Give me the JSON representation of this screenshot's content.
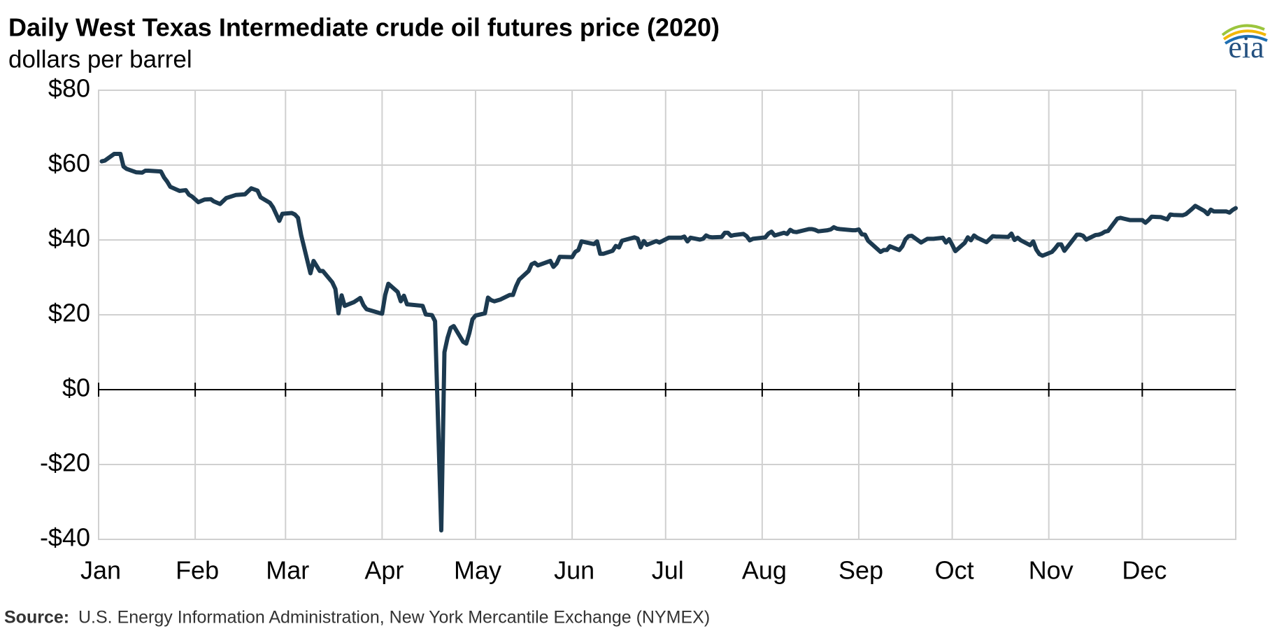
{
  "chart_data": {
    "type": "line",
    "title": "Daily West Texas Intermediate crude oil futures price (2020)",
    "subtitle": "dollars per barrel",
    "source_label": "Source:",
    "source": "U.S. Energy Information Administration, New York Mercantile Exchange (NYMEX)",
    "logo": "eia",
    "color": "#1c3a50",
    "grid": true,
    "xlim": [
      1,
      366
    ],
    "xticks": [
      {
        "value": 1,
        "label": "Jan"
      },
      {
        "value": 32,
        "label": "Feb"
      },
      {
        "value": 61,
        "label": "Mar"
      },
      {
        "value": 92,
        "label": "Apr"
      },
      {
        "value": 122,
        "label": "May"
      },
      {
        "value": 153,
        "label": "Jun"
      },
      {
        "value": 183,
        "label": "Jul"
      },
      {
        "value": 214,
        "label": "Aug"
      },
      {
        "value": 245,
        "label": "Sep"
      },
      {
        "value": 275,
        "label": "Oct"
      },
      {
        "value": 306,
        "label": "Nov"
      },
      {
        "value": 336,
        "label": "Dec"
      }
    ],
    "ylim": [
      -40,
      80
    ],
    "yticks": [
      {
        "value": -40,
        "label": "-$40"
      },
      {
        "value": -20,
        "label": "-$20"
      },
      {
        "value": 0,
        "label": "$0"
      },
      {
        "value": 20,
        "label": "$20"
      },
      {
        "value": 40,
        "label": "$40"
      },
      {
        "value": 60,
        "label": "$60"
      },
      {
        "value": 80,
        "label": "$80"
      }
    ],
    "x": [
      2,
      3,
      6,
      8,
      9,
      10,
      13,
      15,
      16,
      17,
      21,
      22,
      23,
      24,
      27,
      29,
      30,
      31,
      33,
      35,
      37,
      38,
      40,
      42,
      45,
      48,
      50,
      52,
      53,
      56,
      57,
      59,
      60,
      63,
      64,
      65,
      66,
      69,
      70,
      72,
      73,
      76,
      77,
      78,
      79,
      80,
      83,
      85,
      86,
      87,
      91,
      92,
      93,
      94,
      97,
      98,
      99,
      100,
      105,
      106,
      108,
      109,
      111,
      112,
      113,
      114,
      115,
      118,
      119,
      120,
      121,
      122,
      125,
      126,
      127,
      128,
      130,
      133,
      134,
      135,
      136,
      139,
      140,
      141,
      142,
      146,
      147,
      148,
      149,
      153,
      154,
      155,
      156,
      160,
      161,
      162,
      163,
      166,
      167,
      168,
      169,
      173,
      174,
      175,
      176,
      177,
      180,
      181,
      184,
      188,
      189,
      190,
      191,
      194,
      195,
      196,
      197,
      198,
      201,
      202,
      203,
      204,
      205,
      208,
      209,
      210,
      211,
      215,
      216,
      217,
      218,
      221,
      222,
      223,
      224,
      225,
      229,
      230,
      231,
      232,
      235,
      236,
      237,
      238,
      239,
      243,
      244,
      245,
      246,
      247,
      248,
      252,
      253,
      254,
      255,
      258,
      259,
      260,
      261,
      262,
      265,
      266,
      267,
      268,
      269,
      272,
      273,
      274,
      275,
      276,
      279,
      280,
      281,
      282,
      283,
      286,
      287,
      288,
      289,
      290,
      293,
      294,
      295,
      296,
      297,
      300,
      301,
      302,
      303,
      304,
      307,
      308,
      309,
      310,
      311,
      314,
      315,
      316,
      317,
      318,
      321,
      322,
      323,
      324,
      325,
      328,
      329,
      330,
      332,
      335,
      336,
      337,
      338,
      339,
      342,
      343,
      344,
      345,
      346,
      349,
      350,
      351,
      352,
      353,
      356,
      357,
      358,
      359,
      363,
      364,
      365,
      366
    ],
    "values": [
      61,
      61.2,
      63,
      63,
      59.6,
      59,
      58.1,
      58,
      58.5,
      58.5,
      58.3,
      56.7,
      55.6,
      54.2,
      53.1,
      53.3,
      52.1,
      51.6,
      50.1,
      50.8,
      50.9,
      50.3,
      49.6,
      51.2,
      52,
      52.2,
      53.8,
      53.2,
      51.4,
      49.9,
      48.7,
      45.1,
      47,
      47.2,
      46.8,
      45.9,
      41.3,
      31.1,
      34.4,
      31.7,
      31.7,
      28.7,
      26.9,
      20.4,
      25.2,
      22.4,
      23.4,
      24.5,
      22.6,
      21.5,
      20.5,
      20.3,
      25.3,
      28.3,
      26.1,
      23.6,
      25.1,
      22.8,
      22.4,
      20.1,
      19.9,
      18.3,
      -37.6,
      10,
      13.8,
      16.5,
      17,
      12.8,
      12.3,
      15.1,
      18.8,
      19.8,
      20.4,
      24.6,
      23.9,
      23.6,
      24.1,
      25.3,
      25.3,
      27.6,
      29.4,
      31.7,
      33.5,
      33.9,
      33.2,
      34.4,
      32.8,
      33.7,
      35.5,
      35.4,
      36.8,
      37.3,
      39.6,
      38.9,
      39.6,
      36.3,
      36.3,
      37.1,
      38.4,
      38,
      39.8,
      40.7,
      40.4,
      38,
      39.7,
      38.7,
      39.7,
      39.3,
      40.6,
      40.6,
      40.9,
      39.6,
      40.6,
      40.1,
      40.3,
      41.2,
      40.8,
      40.7,
      40.8,
      41.9,
      41.9,
      41.1,
      41.3,
      41.6,
      41,
      39.9,
      40.3,
      40.7,
      41.7,
      42.2,
      41.2,
      41.9,
      41.6,
      42.7,
      42.2,
      42.1,
      42.9,
      42.9,
      42.7,
      42.3,
      42.6,
      42.8,
      43.4,
      43,
      42.9,
      42.6,
      42.6,
      42.8,
      41.5,
      41.4,
      39.8,
      36.8,
      37.3,
      37.3,
      38.3,
      37.3,
      38.3,
      40.2,
      41,
      41.1,
      39.3,
      39.8,
      40.3,
      40.3,
      40.3,
      40.6,
      39.3,
      40.2,
      38.7,
      37,
      39.2,
      40.7,
      39.9,
      41.2,
      40.6,
      39.4,
      40.2,
      41,
      40.9,
      40.9,
      40.8,
      41.7,
      40,
      40.6,
      39.9,
      38.6,
      39.6,
      37.4,
      36.2,
      35.8,
      36.8,
      37.7,
      38.8,
      38.8,
      37.1,
      40.3,
      41.4,
      41.4,
      41.1,
      40.1,
      41.3,
      41.4,
      41.7,
      42.2,
      42.4,
      45.7,
      45.9,
      45.7,
      45.3,
      45.3,
      45.3,
      44.6,
      45.3,
      46.2,
      46.1,
      45.8,
      45.5,
      46.8,
      46.7,
      46.6,
      46.9,
      47.6,
      48.3,
      49.1,
      47.7,
      46.9,
      48.1,
      47.6,
      47.6,
      47.3,
      48,
      48.5
    ]
  }
}
